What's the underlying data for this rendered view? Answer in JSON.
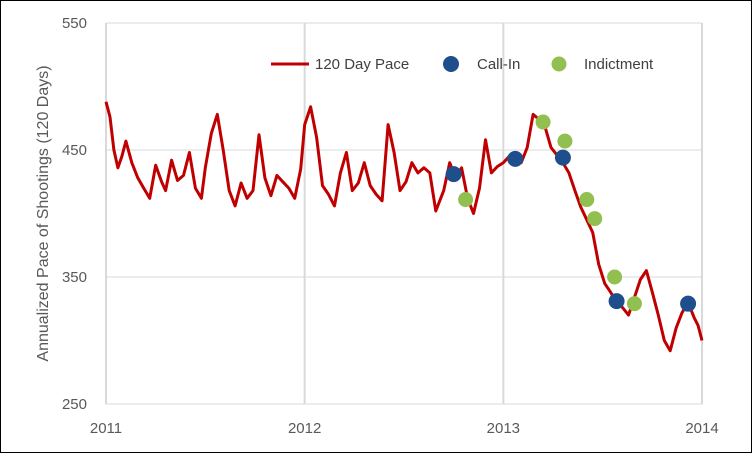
{
  "chart_data": {
    "type": "line",
    "title": "",
    "xlabel": "",
    "ylabel": "Annualized Pace of Shootings (120 Days)",
    "xlim": [
      2011,
      2014
    ],
    "ylim": [
      250,
      550
    ],
    "x_ticks": [
      "2011",
      "2012",
      "2013",
      "2014"
    ],
    "y_ticks": [
      250,
      350,
      450,
      550
    ],
    "grid": "horizontal and yearly vertical",
    "legend": "top-right",
    "colors": {
      "pace": "#c00000",
      "call_in": "#1f4e8c",
      "indictment": "#92c050"
    },
    "legend_entries": [
      "120 Day Pace",
      "Call-In",
      "Indictment"
    ],
    "series": [
      {
        "name": "120 Day Pace",
        "x": [
          2011.0,
          2011.02,
          2011.04,
          2011.06,
          2011.08,
          2011.1,
          2011.13,
          2011.16,
          2011.19,
          2011.22,
          2011.25,
          2011.28,
          2011.3,
          2011.33,
          2011.36,
          2011.39,
          2011.42,
          2011.45,
          2011.48,
          2011.5,
          2011.53,
          2011.56,
          2011.59,
          2011.62,
          2011.65,
          2011.68,
          2011.71,
          2011.74,
          2011.77,
          2011.8,
          2011.83,
          2011.86,
          2011.89,
          2011.92,
          2011.95,
          2011.98,
          2012.0,
          2012.03,
          2012.06,
          2012.09,
          2012.12,
          2012.15,
          2012.18,
          2012.21,
          2012.24,
          2012.27,
          2012.3,
          2012.33,
          2012.36,
          2012.39,
          2012.42,
          2012.45,
          2012.48,
          2012.51,
          2012.54,
          2012.57,
          2012.6,
          2012.63,
          2012.66,
          2012.7,
          2012.73,
          2012.76,
          2012.79,
          2012.82,
          2012.85,
          2012.88,
          2012.91,
          2012.94,
          2012.97,
          2013.0,
          2013.03,
          2013.06,
          2013.09,
          2013.12,
          2013.15,
          2013.18,
          2013.21,
          2013.24,
          2013.27,
          2013.3,
          2013.33,
          2013.36,
          2013.39,
          2013.42,
          2013.45,
          2013.48,
          2013.51,
          2013.54,
          2013.57,
          2013.6,
          2013.63,
          2013.66,
          2013.69,
          2013.72,
          2013.75,
          2013.78,
          2013.81,
          2013.84,
          2013.87,
          2013.9,
          2013.93,
          2013.96,
          2013.98,
          2014.0
        ],
        "y": [
          488,
          476,
          450,
          436,
          445,
          457,
          440,
          428,
          420,
          412,
          438,
          425,
          418,
          442,
          426,
          430,
          448,
          420,
          412,
          436,
          463,
          478,
          450,
          418,
          406,
          424,
          412,
          418,
          462,
          428,
          414,
          430,
          425,
          420,
          412,
          435,
          470,
          484,
          460,
          422,
          415,
          406,
          432,
          448,
          418,
          424,
          440,
          422,
          415,
          410,
          470,
          448,
          418,
          425,
          440,
          432,
          436,
          432,
          402,
          418,
          440,
          428,
          436,
          412,
          400,
          420,
          458,
          432,
          437,
          440,
          445,
          442,
          440,
          452,
          478,
          474,
          468,
          452,
          446,
          440,
          432,
          418,
          405,
          395,
          385,
          360,
          345,
          338,
          330,
          326,
          320,
          334,
          348,
          355,
          338,
          320,
          300,
          292,
          310,
          322,
          330,
          318,
          312,
          300
        ]
      }
    ],
    "call_in": {
      "x": [
        2012.75,
        2013.06,
        2013.3,
        2013.57,
        2013.93
      ],
      "y": [
        431,
        443,
        444,
        331,
        329
      ]
    },
    "indictment": {
      "x": [
        2012.81,
        2013.2,
        2013.31,
        2013.42,
        2013.46,
        2013.56,
        2013.66
      ],
      "y": [
        411,
        472,
        457,
        411,
        396,
        350,
        329
      ]
    }
  }
}
